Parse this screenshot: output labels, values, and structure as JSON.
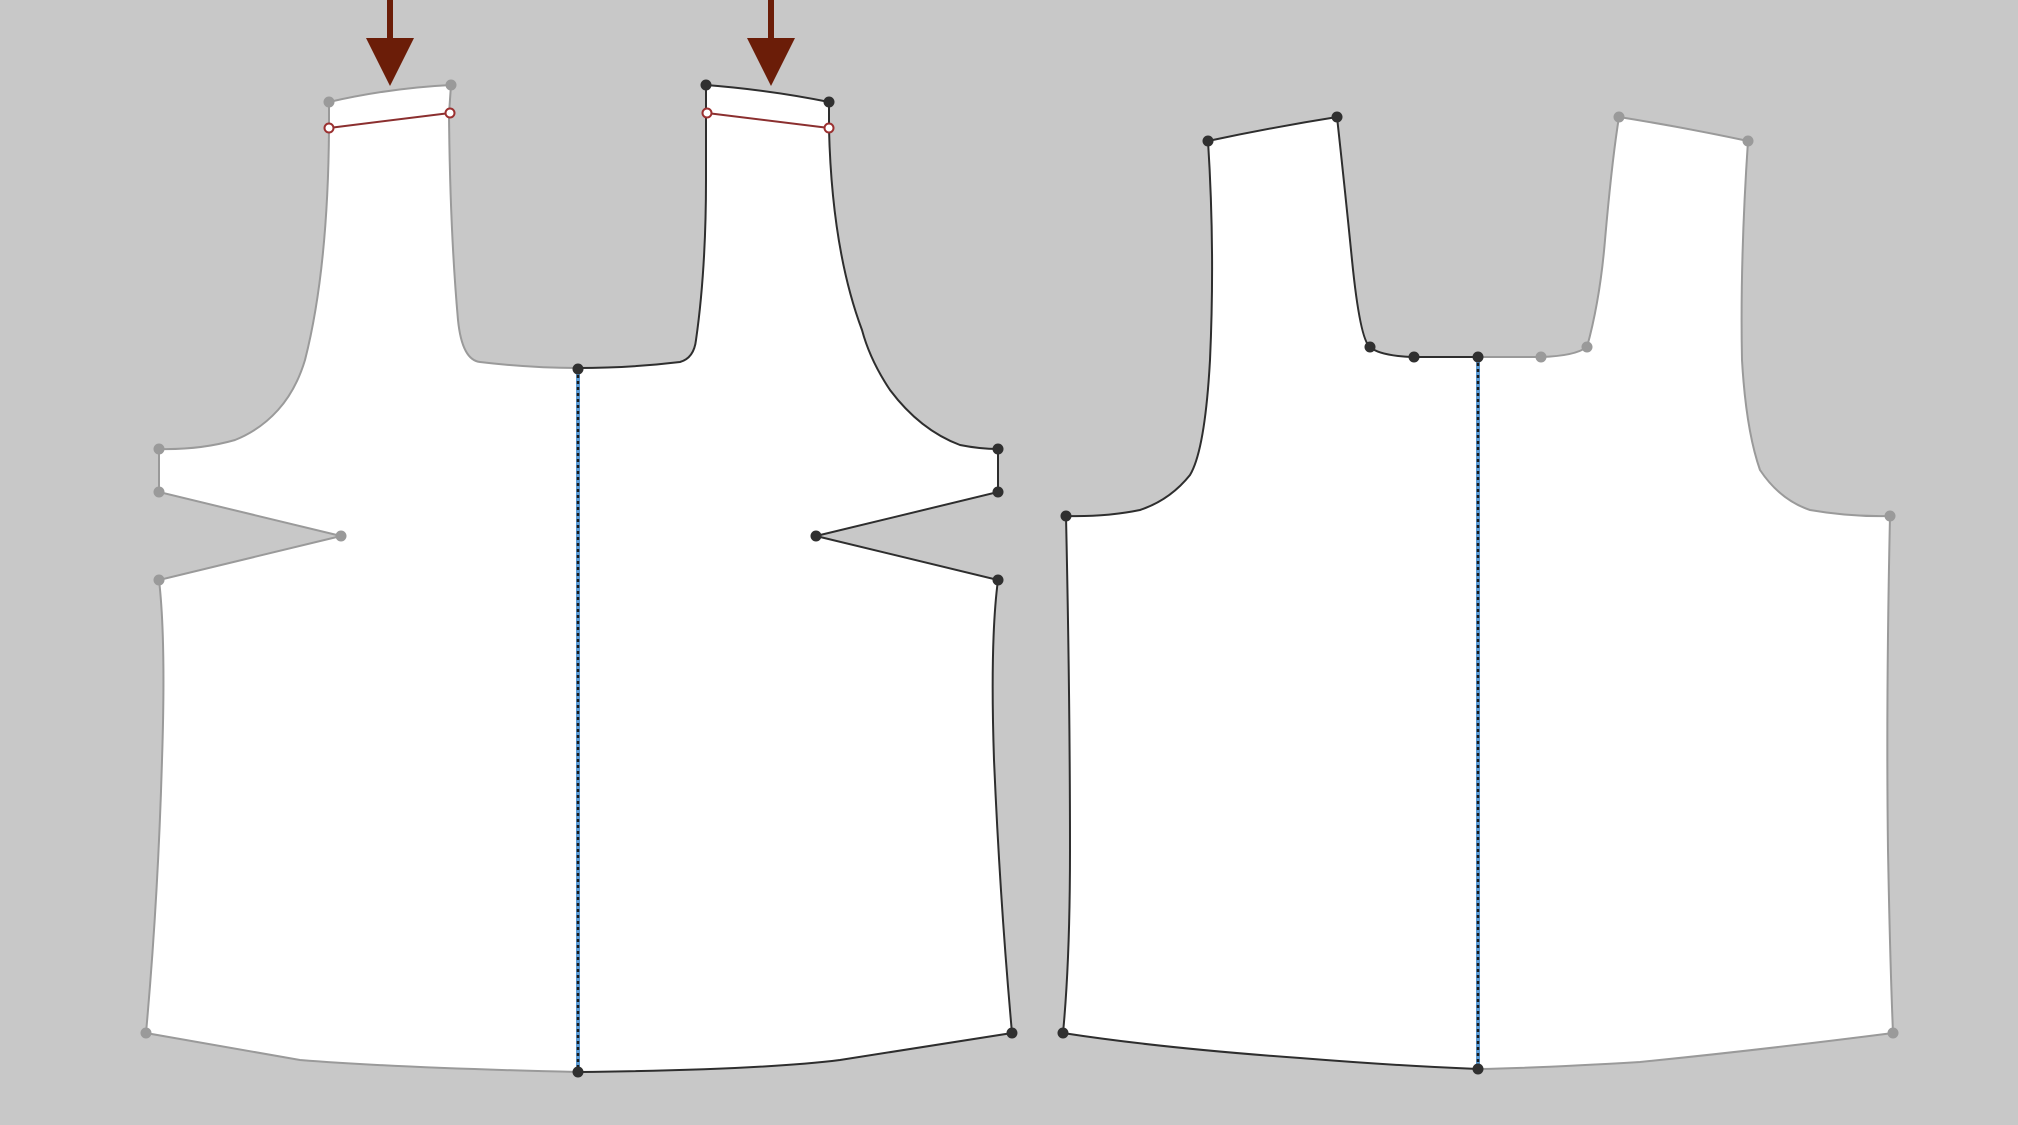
{
  "colors": {
    "canvas_bg": "#c8c8c8",
    "piece_fill": "#ffffff",
    "selected_edge": "#2e2e2e",
    "unselected_edge": "#9a9a9a",
    "fold_line": "#5b9bd5",
    "seam_marker": "#8b2f2f",
    "arrow": "#6b1d08"
  },
  "icons": {
    "shoulder_arrow": "down-arrow-icon"
  }
}
